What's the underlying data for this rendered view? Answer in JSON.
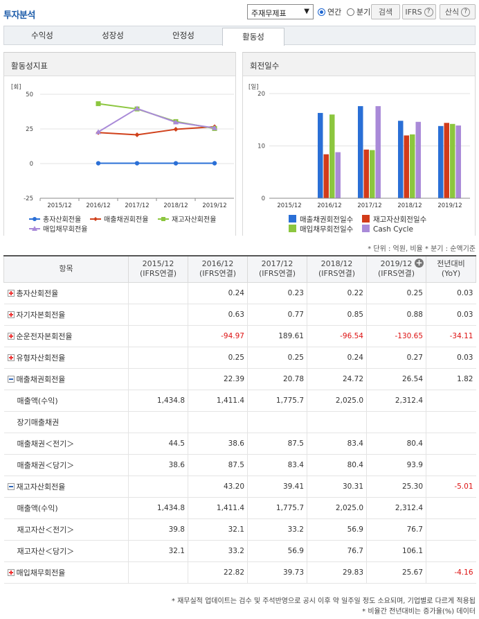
{
  "header": {
    "title": "투자분석",
    "report_select": "주재무제표",
    "radio_annual": "연간",
    "radio_quarter": "분기",
    "search_button": "검색",
    "ifrs_button": "IFRS",
    "formula_button": "산식",
    "help_glyph": "?"
  },
  "tabs": [
    "수익성",
    "성장성",
    "안정성",
    "활동성"
  ],
  "active_tab": "활동성",
  "left_chart": {
    "title": "활동성지표",
    "unit": "[회]",
    "chart_data": {
      "type": "line",
      "categories": [
        "2015/12",
        "2016/12",
        "2017/12",
        "2018/12",
        "2019/12"
      ],
      "ylim": [
        -25,
        50
      ],
      "yticks": [
        "50",
        "25",
        "0",
        "-25"
      ],
      "series": [
        {
          "name": "총자산회전율",
          "values": [
            null,
            0.24,
            0.23,
            0.22,
            0.25
          ],
          "color": "#2a6fd6",
          "marker": "circle"
        },
        {
          "name": "매출채권회전율",
          "values": [
            null,
            22.39,
            20.78,
            24.72,
            26.54
          ],
          "color": "#d0401a",
          "marker": "diamond"
        },
        {
          "name": "재고자산회전율",
          "values": [
            null,
            43.2,
            39.41,
            30.31,
            25.3
          ],
          "color": "#8cc63f",
          "marker": "square"
        },
        {
          "name": "매입채무회전율",
          "values": [
            null,
            22.82,
            39.73,
            29.83,
            25.67
          ],
          "color": "#a98ad8",
          "marker": "triangle"
        }
      ]
    }
  },
  "right_chart": {
    "title": "회전일수",
    "unit": "[일]",
    "chart_data": {
      "type": "bar",
      "categories": [
        "2015/12",
        "2016/12",
        "2017/12",
        "2018/12",
        "2019/12"
      ],
      "ylim": [
        0,
        20
      ],
      "yticks": [
        "20",
        "10",
        "0"
      ],
      "series": [
        {
          "name": "매출채권회전일수",
          "values": [
            null,
            16.3,
            17.6,
            14.8,
            13.8
          ],
          "color": "#2a6fd6"
        },
        {
          "name": "재고자산회전일수",
          "values": [
            null,
            8.4,
            9.3,
            12.0,
            14.4
          ],
          "color": "#d23b1a"
        },
        {
          "name": "매입채무회전일수",
          "values": [
            null,
            16.0,
            9.2,
            12.2,
            14.2
          ],
          "color": "#8cc63f"
        },
        {
          "name": "Cash Cycle",
          "values": [
            null,
            8.8,
            17.6,
            14.6,
            13.9
          ],
          "color": "#a98ad8"
        }
      ]
    }
  },
  "unit_note": "* 단위 : 억원, 비율   * 분기 : 순액기준",
  "table": {
    "item_header": "항목",
    "columns": [
      {
        "l1": "2015/12",
        "l2": "(IFRS연결)"
      },
      {
        "l1": "2016/12",
        "l2": "(IFRS연결)"
      },
      {
        "l1": "2017/12",
        "l2": "(IFRS연결)"
      },
      {
        "l1": "2018/12",
        "l2": "(IFRS연결)"
      },
      {
        "l1": "2019/12",
        "l2": "(IFRS연결)"
      },
      {
        "l1": "전년대비",
        "l2": "(YoY)"
      }
    ],
    "plus_glyph": "+",
    "rows": [
      {
        "label": "총자산회전율",
        "toggle": "plus",
        "values": [
          "",
          "0.24",
          "0.23",
          "0.22",
          "0.25",
          "0.03"
        ]
      },
      {
        "label": "자기자본회전율",
        "toggle": "plus",
        "values": [
          "",
          "0.63",
          "0.77",
          "0.85",
          "0.88",
          "0.03"
        ]
      },
      {
        "label": "순운전자본회전율",
        "toggle": "plus",
        "values": [
          "",
          "-94.97",
          "189.61",
          "-96.54",
          "-130.65",
          "-34.11"
        ]
      },
      {
        "label": "유형자산회전율",
        "toggle": "plus",
        "values": [
          "",
          "0.25",
          "0.25",
          "0.24",
          "0.27",
          "0.03"
        ]
      },
      {
        "label": "매출채권회전율",
        "toggle": "minus",
        "values": [
          "",
          "22.39",
          "20.78",
          "24.72",
          "26.54",
          "1.82"
        ]
      },
      {
        "label": "매출액(수익)",
        "toggle": "",
        "values": [
          "1,434.8",
          "1,411.4",
          "1,775.7",
          "2,025.0",
          "2,312.4",
          ""
        ]
      },
      {
        "label": "장기매출채권",
        "toggle": "",
        "values": [
          "",
          "",
          "",
          "",
          "",
          ""
        ]
      },
      {
        "label": "매출채권＜전기＞",
        "toggle": "",
        "values": [
          "44.5",
          "38.6",
          "87.5",
          "83.4",
          "80.4",
          ""
        ]
      },
      {
        "label": "매출채권＜당기＞",
        "toggle": "",
        "values": [
          "38.6",
          "87.5",
          "83.4",
          "80.4",
          "93.9",
          ""
        ]
      },
      {
        "label": "재고자산회전율",
        "toggle": "minus",
        "values": [
          "",
          "43.20",
          "39.41",
          "30.31",
          "25.30",
          "-5.01"
        ]
      },
      {
        "label": "매출액(수익)",
        "toggle": "",
        "values": [
          "1,434.8",
          "1,411.4",
          "1,775.7",
          "2,025.0",
          "2,312.4",
          ""
        ]
      },
      {
        "label": "재고자산＜전기＞",
        "toggle": "",
        "values": [
          "39.8",
          "32.1",
          "33.2",
          "56.9",
          "76.7",
          ""
        ]
      },
      {
        "label": "재고자산＜당기＞",
        "toggle": "",
        "values": [
          "32.1",
          "33.2",
          "56.9",
          "76.7",
          "106.1",
          ""
        ]
      },
      {
        "label": "매입채무회전율",
        "toggle": "plus",
        "values": [
          "",
          "22.82",
          "39.73",
          "29.83",
          "25.67",
          "-4.16"
        ]
      }
    ]
  },
  "footnotes": [
    "* 재무실적 업데이트는 검수 및 주석반영으로 공시 이후 약 일주일 정도 소요되며, 기업별로 다르게 적용됩",
    "* 비율간 전년대비는 증가율(%) 데이터"
  ]
}
